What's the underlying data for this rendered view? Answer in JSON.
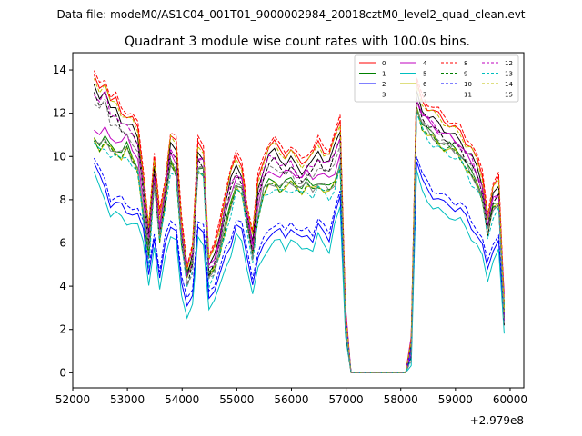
{
  "chart_data": {
    "type": "line",
    "suptitle": "Data file: modeM0/AS1C04_001T01_9000002984_20018cztM0_level2_quad_clean.evt",
    "title": "Quadrant 3 module wise count rates with 100.0s bins.",
    "xlabel": "",
    "ylabel": "",
    "offset_text": "+2.979e8",
    "xlim": [
      52000,
      60250
    ],
    "ylim": [
      -0.7,
      14.8
    ],
    "xticks": [
      52000,
      53000,
      54000,
      55000,
      56000,
      57000,
      58000,
      59000,
      60000
    ],
    "yticks": [
      0,
      2,
      4,
      6,
      8,
      10,
      12,
      14
    ],
    "x_start": 52390,
    "x_step": 100,
    "legend_position": "top-right",
    "patterns": {
      "A": [
        10.8,
        10.4,
        10.6,
        10.3,
        10.2,
        10.0,
        10.3,
        9.8,
        9.4,
        7.2,
        5.2,
        8.8,
        6.2,
        7.8,
        9.6,
        9.2,
        6.0,
        4.3,
        5.0,
        9.4,
        9.2,
        4.3,
        4.8,
        5.6,
        6.6,
        7.6,
        8.6,
        8.4,
        6.8,
        5.4,
        7.2,
        8.3,
        8.6,
        8.7,
        8.5,
        8.6,
        8.7,
        8.6,
        8.4,
        8.6,
        8.4,
        8.7,
        8.5,
        8.3,
        8.7,
        9.6,
        2.3,
        0.0,
        0.0,
        0.0,
        0.0,
        0.0,
        0.0,
        0.0,
        0.0,
        0.0,
        0.0,
        0.0,
        1.0,
        12.2,
        11.4,
        11.0,
        10.8,
        10.6,
        10.4,
        10.3,
        10.2,
        10.0,
        9.5,
        9.0,
        8.7,
        8.1,
        6.4,
        7.5,
        7.8,
        3.0
      ],
      "B": [
        9.5,
        8.8,
        8.4,
        7.6,
        7.6,
        7.5,
        7.3,
        7.2,
        7.0,
        6.4,
        4.5,
        6.0,
        4.0,
        5.8,
        6.7,
        6.3,
        3.8,
        3.0,
        3.5,
        6.4,
        6.2,
        3.4,
        3.6,
        4.2,
        5.2,
        5.8,
        6.6,
        6.3,
        5.2,
        4.0,
        5.0,
        5.6,
        6.2,
        6.4,
        6.3,
        6.0,
        6.6,
        6.2,
        5.9,
        6.2,
        6.0,
        6.6,
        6.2,
        6.0,
        7.2,
        7.8,
        2.0,
        0.0,
        0.0,
        0.0,
        0.0,
        0.0,
        0.0,
        0.0,
        0.0,
        0.0,
        0.0,
        0.0,
        0.8,
        9.6,
        8.6,
        8.3,
        8.0,
        7.8,
        7.6,
        7.6,
        7.4,
        7.3,
        7.0,
        6.6,
        6.2,
        5.6,
        4.6,
        5.6,
        5.9,
        2.0
      ],
      "C": [
        13.3,
        12.9,
        13.2,
        12.2,
        12.3,
        11.8,
        11.6,
        11.4,
        11.0,
        9.0,
        6.4,
        9.5,
        7.0,
        8.6,
        10.6,
        10.3,
        6.8,
        4.6,
        5.4,
        10.3,
        10.1,
        5.0,
        5.4,
        6.5,
        8.0,
        9.0,
        9.6,
        9.3,
        7.4,
        6.0,
        8.6,
        9.6,
        10.2,
        10.3,
        10.0,
        9.8,
        10.0,
        9.6,
        9.4,
        9.7,
        9.8,
        10.3,
        10.0,
        9.9,
        10.5,
        11.3,
        2.6,
        0.0,
        0.0,
        0.0,
        0.0,
        0.0,
        0.0,
        0.0,
        0.0,
        0.0,
        0.0,
        0.0,
        1.2,
        13.0,
        12.3,
        12.0,
        11.8,
        11.6,
        11.4,
        11.2,
        11.0,
        10.8,
        10.4,
        10.2,
        9.5,
        8.8,
        7.0,
        8.3,
        8.6,
        2.8
      ]
    },
    "series": [
      {
        "name": "0",
        "color": "#ff0000",
        "dash": false,
        "pattern": "C",
        "offset": 0.3
      },
      {
        "name": "1",
        "color": "#008000",
        "dash": false,
        "pattern": "A",
        "offset": 0.2
      },
      {
        "name": "2",
        "color": "#0000ff",
        "dash": false,
        "pattern": "B",
        "offset": 0.2
      },
      {
        "name": "3",
        "color": "#000000",
        "dash": false,
        "pattern": "C",
        "offset": -0.1
      },
      {
        "name": "4",
        "color": "#bf00bf",
        "dash": false,
        "pattern": "A",
        "offset": 0.6
      },
      {
        "name": "5",
        "color": "#00bfbf",
        "dash": false,
        "pattern": "B",
        "offset": -0.3
      },
      {
        "name": "6",
        "color": "#bfbf00",
        "dash": false,
        "pattern": "A",
        "offset": 0.0
      },
      {
        "name": "7",
        "color": "#808080",
        "dash": false,
        "pattern": "A",
        "offset": 0.1
      },
      {
        "name": "8",
        "color": "#ff0000",
        "dash": true,
        "pattern": "C",
        "offset": 0.5
      },
      {
        "name": "9",
        "color": "#008000",
        "dash": true,
        "pattern": "A",
        "offset": 0.0
      },
      {
        "name": "10",
        "color": "#0000ff",
        "dash": true,
        "pattern": "B",
        "offset": 0.5
      },
      {
        "name": "11",
        "color": "#000000",
        "dash": true,
        "pattern": "C",
        "offset": -0.5
      },
      {
        "name": "12",
        "color": "#bf00bf",
        "dash": true,
        "pattern": "C",
        "offset": -0.3
      },
      {
        "name": "13",
        "color": "#00bfbf",
        "dash": true,
        "pattern": "A",
        "offset": -0.2
      },
      {
        "name": "14",
        "color": "#bfbf00",
        "dash": true,
        "pattern": "C",
        "offset": 0.2
      },
      {
        "name": "15",
        "color": "#808080",
        "dash": true,
        "pattern": "C",
        "offset": -0.7
      }
    ]
  }
}
